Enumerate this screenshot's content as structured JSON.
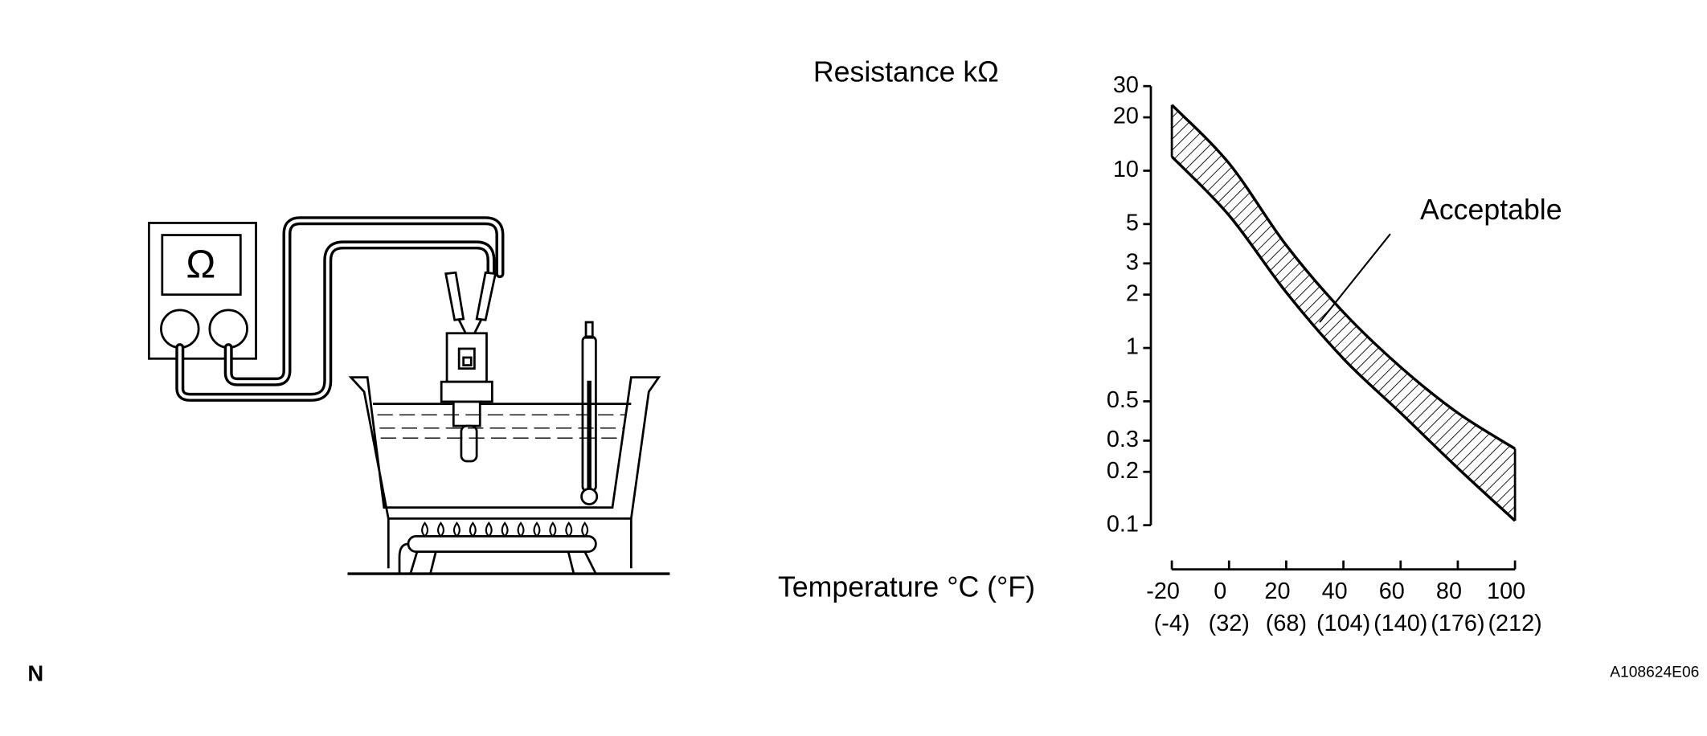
{
  "chart_data": {
    "type": "band",
    "y_label": "Resistance kΩ",
    "x_label": "Temperature °C (°F)",
    "annotation": "Acceptable",
    "x": [
      -20,
      0,
      20,
      40,
      60,
      80,
      100
    ],
    "series": [
      {
        "color": "#000000",
        "values": [
          23.5,
          11,
          3.8,
          1.59,
          0.78,
          0.43,
          0.27
        ]
      },
      {
        "color": "#000000",
        "values": [
          12,
          5.6,
          2.06,
          0.87,
          0.43,
          0.21,
          0.106
        ]
      }
    ],
    "log_y": true,
    "hatch": true,
    "xlim": [
      -20,
      100
    ],
    "xticks": [
      -20,
      0,
      20,
      40,
      60,
      80,
      100
    ],
    "xtick_sublabels": [
      "(-4)",
      "(32)",
      "(68)",
      "(104)",
      "(140)",
      "(176)",
      "(212)"
    ],
    "ylim": [
      0.1,
      30
    ],
    "yticks": [
      0.1,
      0.2,
      0.3,
      0.5,
      1,
      2,
      3,
      5,
      10,
      20,
      30
    ]
  },
  "figure": {
    "corner_mark": "N",
    "code": "A108624E06",
    "meter_symbol": "Ω"
  }
}
